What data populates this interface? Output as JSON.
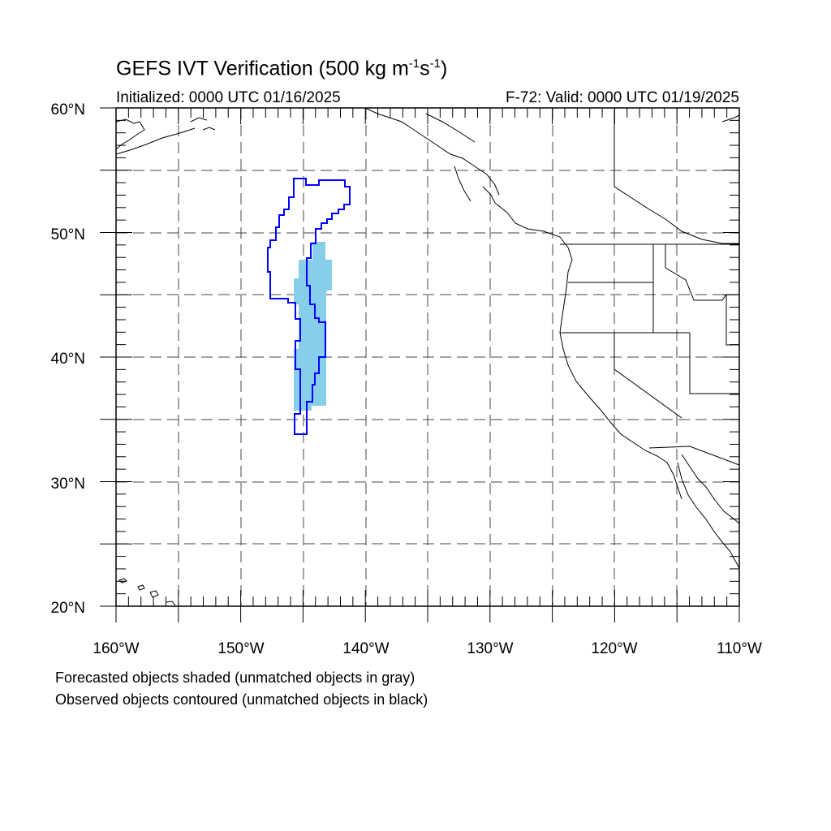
{
  "title": {
    "main": "GEFS IVT Verification (500 kg m",
    "exp1": "-1",
    "mid": "s",
    "exp2": "-1",
    "end": ")"
  },
  "subtitle": {
    "initialized": "Initialized: 0000 UTC 01/16/2025",
    "valid": "F-72: Valid: 0000 UTC 01/19/2025"
  },
  "map": {
    "projection": "cylindrical-equidistant",
    "lon_range": [
      -160,
      -110
    ],
    "lat_range": [
      20,
      60
    ],
    "grid": true,
    "lat_labels": [
      "20°N",
      "30°N",
      "40°N",
      "50°N",
      "60°N"
    ],
    "lon_labels": [
      "160°W",
      "150°W",
      "140°W",
      "130°W",
      "120°W",
      "110°W"
    ],
    "colors": {
      "forecast_fill": "#87CEEB",
      "observed_contour": "#0000FF",
      "coastline": "#000000",
      "grid": "#000000"
    }
  },
  "captions": {
    "forecast": "Forecasted objects shaded (unmatched objects in gray)",
    "observed": "Observed objects contoured (unmatched objects in black)"
  }
}
